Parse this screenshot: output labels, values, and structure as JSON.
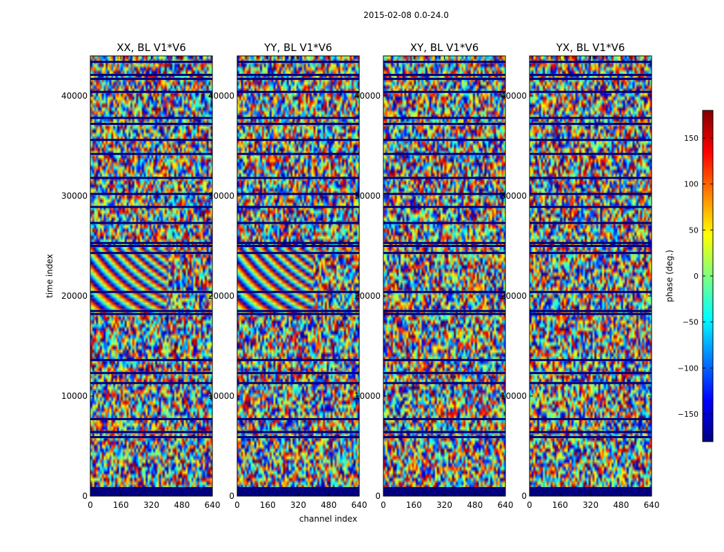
{
  "figure_title": "2015-02-08 0.0-24.0",
  "chart_data": {
    "type": "heatmap",
    "title": "2015-02-08 0.0-24.0",
    "xlabel": "channel index",
    "ylabel": "time index",
    "xlim": [
      0,
      640
    ],
    "ylim": [
      0,
      44000
    ],
    "x_ticks": [
      "0",
      "160",
      "320",
      "480",
      "640"
    ],
    "y_ticks": [
      "0",
      "10000",
      "20000",
      "30000",
      "40000"
    ],
    "colormap": "jet",
    "colorbar": {
      "label": "phase (deg.)",
      "range": [
        -180,
        180
      ],
      "ticks": [
        "150",
        "100",
        "50",
        "0",
        "−50",
        "−100",
        "−150"
      ],
      "tick_values": [
        150,
        100,
        50,
        0,
        -50,
        -100,
        -150
      ]
    },
    "panels": [
      {
        "name": "XX, BL V1*V6",
        "polarization": "XX",
        "fringe": true
      },
      {
        "name": "YY, BL V1*V6",
        "polarization": "YY",
        "fringe": true
      },
      {
        "name": "XY, BL V1*V6",
        "polarization": "XY",
        "fringe": false
      },
      {
        "name": "YX, BL V1*V6",
        "polarization": "YX",
        "fringe": false
      }
    ],
    "flagged_time_rows": [
      0,
      800,
      5900,
      6400,
      7700,
      11300,
      12300,
      13600,
      18200,
      18500,
      20400,
      24300,
      25000,
      25300,
      27300,
      28900,
      30200,
      31800,
      34200,
      35600,
      37200,
      37800,
      40400,
      41700,
      42100,
      43400
    ],
    "fringe_time_range": [
      18500,
      25000
    ],
    "fringe_channel_range": [
      0,
      400
    ]
  }
}
